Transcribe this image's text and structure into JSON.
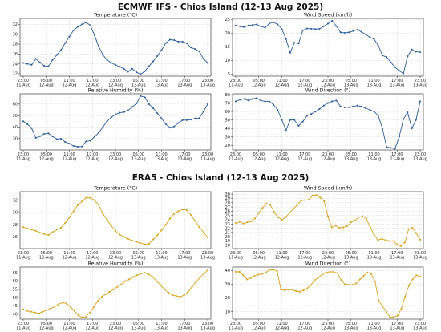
{
  "colors": {
    "ecmwf": "#2b5d9a",
    "era5": "#d9a21b"
  },
  "icons": {
    "marker": "dot-marker"
  },
  "chart_data": [
    {
      "section": "ECMWF IFS - Chios Island (12-13 Aug 2025)",
      "color": "#2b5d9a",
      "charts": [
        {
          "type": "line",
          "title": "Temperature (°C)",
          "grid": true,
          "ylim": [
            21.5,
            33.2
          ],
          "yticks": [
            22,
            24,
            26,
            28,
            30,
            32
          ],
          "xticks": [
            {
              "date": "23:00",
              "day": "11-Aug"
            },
            {
              "date": "05:00",
              "day": "12-Aug"
            },
            {
              "date": "11:00",
              "day": "12-Aug"
            },
            {
              "date": "17:00",
              "day": "12-Aug"
            },
            {
              "date": "23:00",
              "day": "12-Aug"
            },
            {
              "date": "05:00",
              "day": "13-Aug"
            },
            {
              "date": "11:00",
              "day": "13-Aug"
            },
            {
              "date": "17:00",
              "day": "13-Aug"
            },
            {
              "date": "23:00",
              "day": "13-Aug"
            }
          ],
          "values": [
            24.2,
            24.0,
            23.8,
            25.0,
            24.3,
            23.6,
            23.5,
            24.8,
            25.8,
            26.8,
            28.2,
            29.5,
            30.8,
            31.5,
            32.0,
            32.4,
            31.8,
            29.8,
            27.5,
            25.8,
            24.8,
            24.2,
            23.8,
            23.4,
            23.0,
            22.4,
            23.0,
            22.3,
            21.9,
            22.5,
            23.5,
            24.5,
            25.6,
            26.8,
            28.2,
            28.9,
            28.8,
            28.5,
            28.5,
            28.2,
            27.3,
            27.0,
            26.5,
            25.0,
            24.2
          ]
        },
        {
          "type": "line",
          "title": "Wind Speed (km/h)",
          "grid": true,
          "ylim": [
            4.2,
            25.4
          ],
          "yticks": [
            5,
            10,
            15,
            20,
            25
          ],
          "xticks": [
            {
              "date": "23:00",
              "day": "11-Aug"
            },
            {
              "date": "05:00",
              "day": "12-Aug"
            },
            {
              "date": "11:00",
              "day": "12-Aug"
            },
            {
              "date": "17:00",
              "day": "12-Aug"
            },
            {
              "date": "23:00",
              "day": "12-Aug"
            },
            {
              "date": "05:00",
              "day": "13-Aug"
            },
            {
              "date": "11:00",
              "day": "13-Aug"
            },
            {
              "date": "17:00",
              "day": "13-Aug"
            },
            {
              "date": "23:00",
              "day": "13-Aug"
            }
          ],
          "values": [
            22.8,
            22.5,
            22.2,
            22.8,
            23.0,
            23.2,
            22.5,
            22.0,
            23.5,
            24.0,
            23.2,
            21.5,
            17.8,
            12.8,
            16.5,
            16.2,
            21.0,
            21.7,
            21.6,
            21.5,
            21.6,
            22.5,
            23.5,
            24.5,
            22.6,
            20.3,
            20.1,
            20.3,
            20.8,
            21.3,
            20.5,
            19.5,
            18.5,
            17.8,
            15.5,
            11.8,
            11.2,
            9.3,
            7.5,
            6.2,
            5.2,
            11.5,
            14.0,
            13.2,
            13.0
          ]
        },
        {
          "type": "line",
          "title": "Relative Humidity (%)",
          "grid": true,
          "ylim": [
            20,
            69
          ],
          "yticks": [
            30,
            40,
            50,
            60
          ],
          "xticks": [
            {
              "date": "23:00",
              "day": "11-Aug"
            },
            {
              "date": "05:00",
              "day": "12-Aug"
            },
            {
              "date": "11:00",
              "day": "12-Aug"
            },
            {
              "date": "17:00",
              "day": "12-Aug"
            },
            {
              "date": "23:00",
              "day": "12-Aug"
            },
            {
              "date": "05:00",
              "day": "13-Aug"
            },
            {
              "date": "11:00",
              "day": "13-Aug"
            },
            {
              "date": "17:00",
              "day": "13-Aug"
            },
            {
              "date": "23:00",
              "day": "13-Aug"
            }
          ],
          "values": [
            45.0,
            42.5,
            39.0,
            30.5,
            32.0,
            34.0,
            34.5,
            31.8,
            29.5,
            29.8,
            27.0,
            25.5,
            23.5,
            22.8,
            23.0,
            27.5,
            28.0,
            31.5,
            35.0,
            40.0,
            45.0,
            48.5,
            51.0,
            52.5,
            53.0,
            54.5,
            57.5,
            60.5,
            67.0,
            66.0,
            60.0,
            56.5,
            52.0,
            47.5,
            42.5,
            39.5,
            40.5,
            43.5,
            46.0,
            46.0,
            46.5,
            47.5,
            47.8,
            53.5,
            60.0
          ]
        },
        {
          "type": "line",
          "title": "Wind Direction (°)",
          "grid": true,
          "ylim": [
            14.5,
            81
          ],
          "yticks": [
            20,
            30,
            40,
            50,
            60,
            70,
            80
          ],
          "xticks": [
            {
              "date": "23:00",
              "day": "11-Aug"
            },
            {
              "date": "05:00",
              "day": "12-Aug"
            },
            {
              "date": "11:00",
              "day": "12-Aug"
            },
            {
              "date": "17:00",
              "day": "12-Aug"
            },
            {
              "date": "23:00",
              "day": "12-Aug"
            },
            {
              "date": "05:00",
              "day": "13-Aug"
            },
            {
              "date": "11:00",
              "day": "13-Aug"
            },
            {
              "date": "17:00",
              "day": "13-Aug"
            },
            {
              "date": "23:00",
              "day": "13-Aug"
            }
          ],
          "values": [
            72,
            74,
            75,
            73,
            75,
            76,
            73,
            72,
            72,
            68,
            62,
            50,
            38,
            50,
            50,
            43,
            48,
            55,
            57,
            60,
            63,
            67,
            70,
            72,
            73,
            66,
            65,
            65,
            66,
            67,
            66,
            64,
            62,
            60,
            55,
            40,
            18,
            17,
            16,
            30,
            51,
            59,
            40,
            50,
            72
          ]
        }
      ]
    },
    {
      "section": "ERA5 - Chios Island (12-13 Aug 2025)",
      "color": "#d9a21b",
      "charts": [
        {
          "type": "line",
          "title": "Temperature (°C)",
          "grid": true,
          "ylim": [
            24.1,
            33.4
          ],
          "yticks": [
            26,
            28,
            30,
            32
          ],
          "xticks": [
            {
              "date": "23:00",
              "day": "11-Aug"
            },
            {
              "date": "05:00",
              "day": "12-Aug"
            },
            {
              "date": "11:00",
              "day": "12-Aug"
            },
            {
              "date": "17:00",
              "day": "12-Aug"
            },
            {
              "date": "23:00",
              "day": "12-Aug"
            },
            {
              "date": "05:00",
              "day": "13-Aug"
            },
            {
              "date": "11:00",
              "day": "13-Aug"
            },
            {
              "date": "17:00",
              "day": "13-Aug"
            },
            {
              "date": "23:00",
              "day": "13-Aug"
            }
          ],
          "values": [
            27.6,
            27.4,
            27.2,
            27.0,
            26.7,
            26.5,
            26.3,
            26.8,
            27.2,
            27.5,
            28.3,
            29.2,
            30.2,
            31.2,
            31.8,
            32.4,
            32.4,
            32.0,
            31.2,
            29.8,
            28.8,
            27.8,
            27.0,
            26.4,
            26.0,
            25.7,
            25.4,
            25.2,
            25.0,
            24.8,
            24.9,
            25.6,
            26.3,
            27.1,
            28.0,
            29.0,
            29.8,
            30.2,
            30.5,
            30.4,
            29.6,
            28.6,
            27.6,
            26.8,
            25.9
          ]
        },
        {
          "type": "line",
          "title": "Wind Speed (km/h)",
          "grid": true,
          "ylim": [
            17.2,
            30.6
          ],
          "yticks": [
            18,
            19,
            20,
            21,
            22,
            23,
            24,
            25,
            26,
            27,
            28,
            29,
            30
          ],
          "xticks": [
            {
              "date": "23:00",
              "day": "11-Aug"
            },
            {
              "date": "05:00",
              "day": "12-Aug"
            },
            {
              "date": "11:00",
              "day": "12-Aug"
            },
            {
              "date": "17:00",
              "day": "12-Aug"
            },
            {
              "date": "23:00",
              "day": "12-Aug"
            },
            {
              "date": "05:00",
              "day": "13-Aug"
            },
            {
              "date": "11:00",
              "day": "13-Aug"
            },
            {
              "date": "17:00",
              "day": "13-Aug"
            },
            {
              "date": "23:00",
              "day": "13-Aug"
            }
          ],
          "values": [
            23.2,
            23.5,
            23.1,
            23.4,
            23.6,
            24.3,
            25.6,
            26.8,
            27.8,
            27.5,
            25.8,
            24.6,
            24.0,
            24.6,
            25.6,
            26.6,
            27.4,
            28.5,
            28.6,
            28.7,
            29.7,
            29.8,
            29.2,
            28.4,
            24.8,
            22.2,
            22.6,
            22.1,
            22.2,
            22.5,
            23.4,
            23.8,
            24.6,
            24.8,
            24.2,
            22.2,
            20.5,
            19.2,
            19.5,
            19.2,
            19.0,
            19.0,
            18.2,
            17.8,
            18.6,
            21.8,
            22.1,
            20.8,
            19.3
          ]
        },
        {
          "type": "line",
          "title": "Relative Humidity (%)",
          "grid": true,
          "ylim": [
            37,
            68.5
          ],
          "yticks": [
            40,
            45,
            50,
            55,
            60,
            65
          ],
          "xticks": [
            {
              "date": "23:00",
              "day": "11-Aug"
            },
            {
              "date": "05:00",
              "day": "12-Aug"
            },
            {
              "date": "11:00",
              "day": "12-Aug"
            },
            {
              "date": "17:00",
              "day": "12-Aug"
            },
            {
              "date": "23:00",
              "day": "12-Aug"
            },
            {
              "date": "05:00",
              "day": "13-Aug"
            },
            {
              "date": "11:00",
              "day": "13-Aug"
            },
            {
              "date": "17:00",
              "day": "13-Aug"
            },
            {
              "date": "23:00",
              "day": "13-Aug"
            }
          ],
          "values": [
            43,
            42,
            41.5,
            41,
            40.5,
            41.5,
            42.5,
            43.5,
            44.5,
            46,
            47,
            46.5,
            44.5,
            42,
            39.5,
            38,
            38.5,
            41,
            44.5,
            48,
            50.5,
            52,
            53.5,
            55,
            56.5,
            58,
            60,
            61,
            62.5,
            63.5,
            64.5,
            65,
            64,
            62.5,
            60,
            57.5,
            55,
            53,
            51.5,
            51,
            50.5,
            51.5,
            53.5,
            56.5,
            59.5,
            62,
            64.5,
            66.5
          ]
        },
        {
          "type": "line",
          "title": "Wind Direction (°)",
          "grid": true,
          "ylim": [
            4.5,
            42.5
          ],
          "yticks": [
            10,
            20,
            30,
            40
          ],
          "xticks": [
            {
              "date": "23:00",
              "day": "11-Aug"
            },
            {
              "date": "05:00",
              "day": "12-Aug"
            },
            {
              "date": "11:00",
              "day": "12-Aug"
            },
            {
              "date": "17:00",
              "day": "12-Aug"
            },
            {
              "date": "23:00",
              "day": "12-Aug"
            },
            {
              "date": "05:00",
              "day": "13-Aug"
            },
            {
              "date": "11:00",
              "day": "13-Aug"
            },
            {
              "date": "17:00",
              "day": "13-Aug"
            },
            {
              "date": "23:00",
              "day": "13-Aug"
            }
          ],
          "values": [
            39,
            39,
            36.5,
            33.5,
            34.5,
            36,
            37,
            37.5,
            38.5,
            40.5,
            40.5,
            39.5,
            26,
            25.5,
            26,
            26,
            25,
            24.5,
            25.5,
            27,
            29.5,
            33,
            35,
            37,
            38.5,
            39,
            39,
            38,
            33,
            30,
            29.5,
            29.5,
            30.5,
            33.5,
            36,
            38.5,
            37.5,
            32,
            18,
            14,
            10,
            6,
            6,
            7,
            12,
            21,
            29,
            33.5,
            36.5,
            35.5
          ]
        }
      ]
    }
  ]
}
